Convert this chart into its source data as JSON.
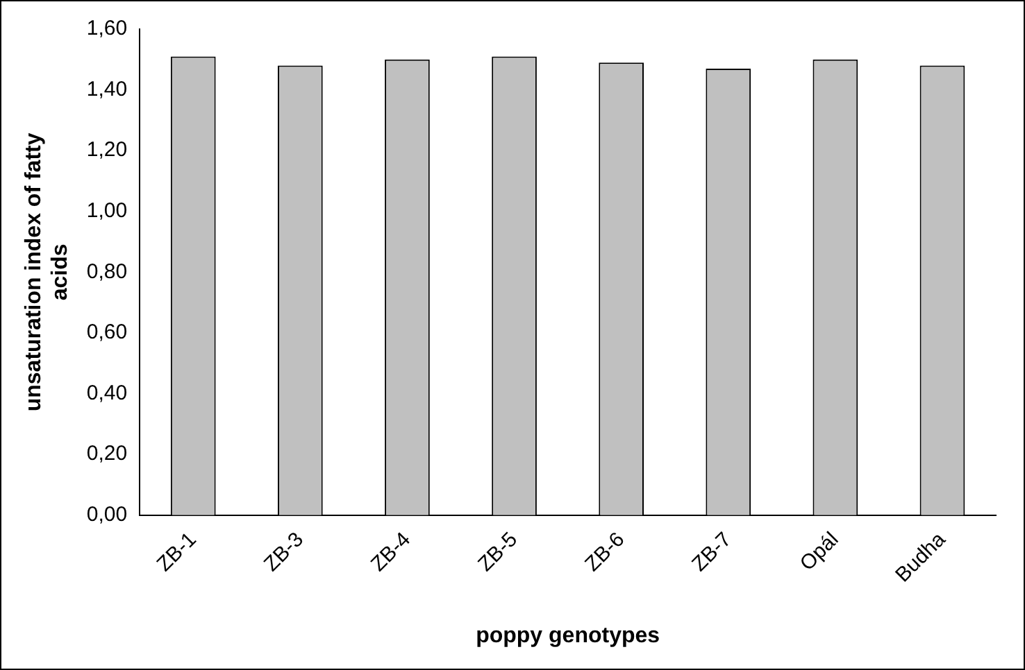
{
  "chart_data": {
    "type": "bar",
    "xlabel": "poppy genotypes",
    "ylabel": "unsaturation index of fatty acids",
    "categories": [
      "ZB-1",
      "ZB-3",
      "ZB-4",
      "ZB-5",
      "ZB-6",
      "ZB-7",
      "Opál",
      "Budha"
    ],
    "values": [
      1.51,
      1.48,
      1.5,
      1.51,
      1.49,
      1.47,
      1.5,
      1.48
    ],
    "color": "#c0c0c0",
    "ylim": [
      0,
      1.6
    ],
    "yticks": [
      {
        "value": 0,
        "label": "0,00"
      },
      {
        "value": 0.2,
        "label": "0,20"
      },
      {
        "value": 0.4,
        "label": "0,40"
      },
      {
        "value": 0.6,
        "label": "0,60"
      },
      {
        "value": 0.8,
        "label": "0,80"
      },
      {
        "value": 1.0,
        "label": "1,00"
      },
      {
        "value": 1.2,
        "label": "1,20"
      },
      {
        "value": 1.4,
        "label": "1,40"
      },
      {
        "value": 1.6,
        "label": "1,60"
      }
    ],
    "grid": false,
    "legend": false
  }
}
